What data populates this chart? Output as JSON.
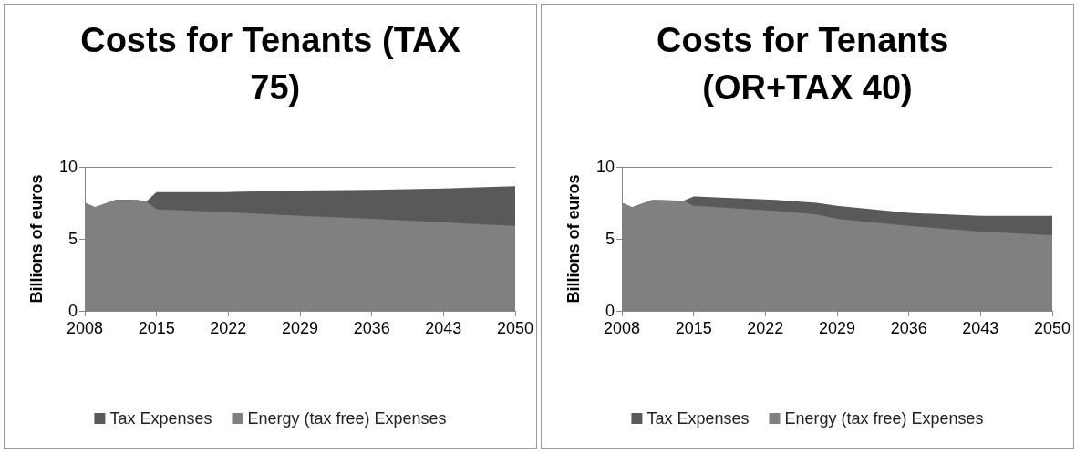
{
  "chart_data": [
    {
      "type": "area",
      "title": "Costs for Tenants (TAX 75)",
      "ylabel": "Billions of euros",
      "x": [
        2008,
        2009,
        2011,
        2013,
        2014,
        2015,
        2022,
        2029,
        2036,
        2043,
        2050
      ],
      "stacked": true,
      "series": [
        {
          "name": "Energy (tax free) Expenses",
          "color": "#808080",
          "values": [
            7.5,
            7.2,
            7.7,
            7.7,
            7.6,
            7.05,
            6.85,
            6.6,
            6.4,
            6.15,
            5.9
          ]
        },
        {
          "name": "Tax Expenses",
          "color": "#595959",
          "values": [
            0,
            0,
            0,
            0,
            0,
            1.2,
            1.4,
            1.75,
            2.0,
            2.35,
            2.75
          ]
        }
      ],
      "xlim": [
        2008,
        2050
      ],
      "xticks": [
        2008,
        2015,
        2022,
        2029,
        2036,
        2043,
        2050
      ],
      "ylim": [
        0,
        10
      ],
      "yticks": [
        0,
        5,
        10
      ],
      "legend": "bottom"
    },
    {
      "type": "area",
      "title": "Costs for Tenants (OR+TAX 40)",
      "ylabel": "Billions of euros",
      "x": [
        2008,
        2009,
        2011,
        2014,
        2015,
        2023,
        2027,
        2029,
        2036,
        2043,
        2050
      ],
      "stacked": true,
      "series": [
        {
          "name": "Energy (tax free) Expenses",
          "color": "#808080",
          "values": [
            7.5,
            7.2,
            7.7,
            7.65,
            7.3,
            6.95,
            6.7,
            6.4,
            5.9,
            5.5,
            5.25
          ]
        },
        {
          "name": "Tax Expenses",
          "color": "#595959",
          "values": [
            0,
            0,
            0,
            0,
            0.65,
            0.75,
            0.8,
            0.9,
            0.9,
            1.1,
            1.35
          ]
        }
      ],
      "xlim": [
        2008,
        2050
      ],
      "xticks": [
        2008,
        2015,
        2022,
        2029,
        2036,
        2043,
        2050
      ],
      "ylim": [
        0,
        10
      ],
      "yticks": [
        0,
        5,
        10
      ],
      "legend": "bottom"
    }
  ]
}
